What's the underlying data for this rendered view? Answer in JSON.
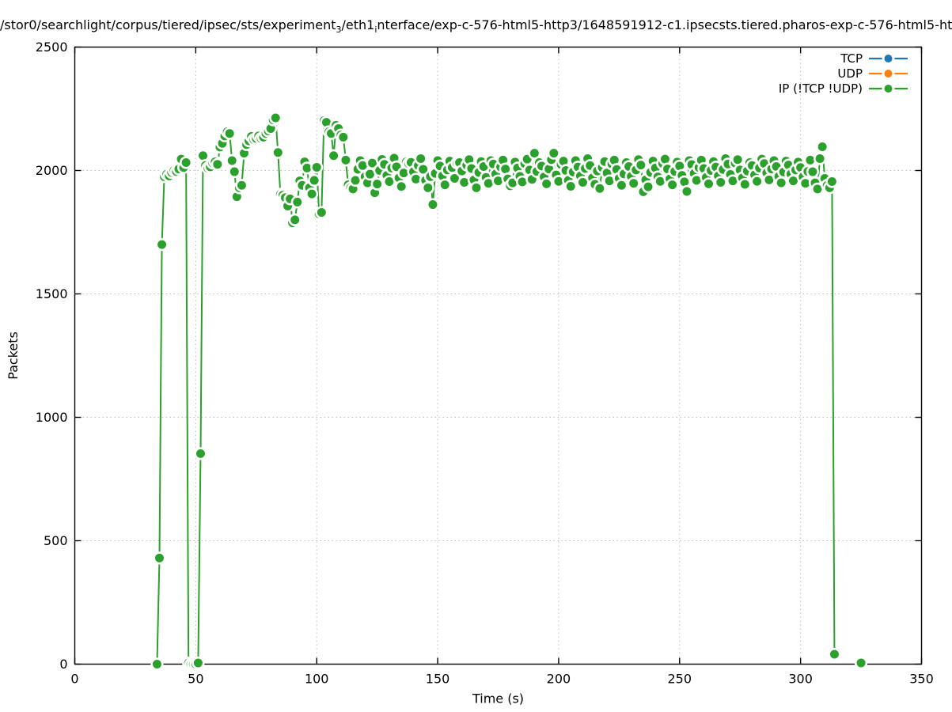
{
  "title": {
    "part1": "/stor0/searchlight/corpus/tiered/ipsec/sts/experiment",
    "sub1": "3",
    "part2": "/eth1",
    "sub2": "i",
    "part3": "nterface/exp-c-576-html5-http3/1648591912-c1.ipsecsts.tiered.pharos-exp-c-576-html5-ht"
  },
  "chart_data": {
    "type": "line",
    "title": "/stor0/searchlight/corpus/tiered/ipsec/sts/experiment_3/eth1_interface/exp-c-576-html5-http3/1648591912-c1.ipsecsts.tiered.pharos-exp-c-576-html5-ht (title clipped at image edges)",
    "xlabel": "Time (s)",
    "ylabel": "Packets",
    "xlim": [
      0,
      350
    ],
    "ylim": [
      0,
      2500
    ],
    "xticks": [
      0,
      50,
      100,
      150,
      200,
      250,
      300,
      350
    ],
    "yticks": [
      0,
      500,
      1000,
      1500,
      2000,
      2500
    ],
    "grid": "dotted",
    "legend_position": "top-right-inside",
    "marker": "filled-circle-with-white-halo",
    "series": [
      {
        "name": "TCP",
        "color": "#1f77b4",
        "points": []
      },
      {
        "name": "UDP",
        "color": "#ff7f0e",
        "points": []
      },
      {
        "name": "IP (!TCP  !UDP)",
        "color": "#2ca02c",
        "points": [
          [
            34,
            0
          ],
          [
            35,
            430
          ],
          [
            36,
            1700
          ],
          [
            37,
            1975
          ],
          [
            38,
            1985
          ],
          [
            39,
            1978
          ],
          [
            40,
            1992
          ],
          [
            41,
            2000
          ],
          [
            42,
            1996
          ],
          [
            43,
            2006
          ],
          [
            44,
            2046
          ],
          [
            45,
            2012
          ],
          [
            46,
            2032
          ],
          [
            47,
            5
          ],
          [
            48,
            0
          ],
          [
            49,
            0
          ],
          [
            50,
            0
          ],
          [
            51,
            5
          ],
          [
            52,
            853
          ],
          [
            53,
            2060
          ],
          [
            54,
            2020
          ],
          [
            55,
            2010
          ],
          [
            56,
            2015
          ],
          [
            57,
            2030
          ],
          [
            58,
            2035
          ],
          [
            59,
            2025
          ],
          [
            60,
            2095
          ],
          [
            61,
            2110
          ],
          [
            62,
            2140
          ],
          [
            63,
            2157
          ],
          [
            64,
            2150
          ],
          [
            65,
            2040
          ],
          [
            66,
            1995
          ],
          [
            67,
            1894
          ],
          [
            68,
            1930
          ],
          [
            69,
            1940
          ],
          [
            70,
            2070
          ],
          [
            71,
            2105
          ],
          [
            72,
            2120
          ],
          [
            73,
            2138
          ],
          [
            74,
            2125
          ],
          [
            75,
            2130
          ],
          [
            76,
            2140
          ],
          [
            77,
            2130
          ],
          [
            78,
            2135
          ],
          [
            79,
            2150
          ],
          [
            80,
            2160
          ],
          [
            81,
            2170
          ],
          [
            82,
            2205
          ],
          [
            83,
            2213
          ],
          [
            84,
            2073
          ],
          [
            85,
            1904
          ],
          [
            86,
            1900
          ],
          [
            87,
            1890
          ],
          [
            88,
            1856
          ],
          [
            89,
            1885
          ],
          [
            90,
            1788
          ],
          [
            91,
            1800
          ],
          [
            92,
            1872
          ],
          [
            93,
            1958
          ],
          [
            94,
            1940
          ],
          [
            95,
            2035
          ],
          [
            96,
            2010
          ],
          [
            97,
            1930
          ],
          [
            98,
            1905
          ],
          [
            99,
            1960
          ],
          [
            100,
            2013
          ],
          [
            101,
            1824
          ],
          [
            102,
            1830
          ],
          [
            103,
            2202
          ],
          [
            104,
            2195
          ],
          [
            105,
            2157
          ],
          [
            106,
            2150
          ],
          [
            107,
            2060
          ],
          [
            108,
            2183
          ],
          [
            109,
            2170
          ],
          [
            110,
            2144
          ],
          [
            111,
            2135
          ],
          [
            112,
            2042
          ],
          [
            113,
            1942
          ],
          [
            114,
            1930
          ],
          [
            115,
            1925
          ],
          [
            116,
            1960
          ],
          [
            117,
            2005
          ],
          [
            118,
            2040
          ],
          [
            119,
            2020
          ],
          [
            120,
            1975
          ],
          [
            121,
            1950
          ],
          [
            122,
            1985
          ],
          [
            123,
            2030
          ],
          [
            124,
            1910
          ],
          [
            125,
            1945
          ],
          [
            126,
            2000
          ],
          [
            127,
            2045
          ],
          [
            128,
            2025
          ],
          [
            129,
            1980
          ],
          [
            130,
            1955
          ],
          [
            131,
            2010
          ],
          [
            132,
            2050
          ],
          [
            133,
            2015
          ],
          [
            134,
            1970
          ],
          [
            135,
            1935
          ],
          [
            136,
            1990
          ],
          [
            137,
            2035
          ],
          [
            138,
            2028
          ],
          [
            139,
            2033
          ],
          [
            140,
            1995
          ],
          [
            141,
            1965
          ],
          [
            142,
            2020
          ],
          [
            143,
            2048
          ],
          [
            144,
            2005
          ],
          [
            145,
            1960
          ],
          [
            146,
            1930
          ],
          [
            147,
            1975
          ],
          [
            148,
            1862
          ],
          [
            149,
            1988
          ],
          [
            150,
            2040
          ],
          [
            151,
            2018
          ],
          [
            152,
            1978
          ],
          [
            153,
            1942
          ],
          [
            154,
            2002
          ],
          [
            155,
            2038
          ],
          [
            156,
            2012
          ],
          [
            157,
            1968
          ],
          [
            158,
            2030
          ],
          [
            159,
            2032
          ],
          [
            160,
            1998
          ],
          [
            161,
            1952
          ],
          [
            162,
            2022
          ],
          [
            163,
            2044
          ],
          [
            164,
            2008
          ],
          [
            165,
            1962
          ],
          [
            166,
            1930
          ],
          [
            167,
            1992
          ],
          [
            168,
            2036
          ],
          [
            169,
            2016
          ],
          [
            170,
            1972
          ],
          [
            171,
            1948
          ],
          [
            172,
            2040
          ],
          [
            173,
            2026
          ],
          [
            174,
            1986
          ],
          [
            175,
            1958
          ],
          [
            176,
            2014
          ],
          [
            177,
            2042
          ],
          [
            178,
            2006
          ],
          [
            179,
            1966
          ],
          [
            180,
            1938
          ],
          [
            181,
            1950
          ],
          [
            182,
            2034
          ],
          [
            183,
            2010
          ],
          [
            184,
            1976
          ],
          [
            185,
            1954
          ],
          [
            186,
            2028
          ],
          [
            187,
            2046
          ],
          [
            188,
            2002
          ],
          [
            189,
            1964
          ],
          [
            190,
            2070
          ],
          [
            191,
            1996
          ],
          [
            192,
            2032
          ],
          [
            193,
            2018
          ],
          [
            194,
            1974
          ],
          [
            195,
            1946
          ],
          [
            196,
            2006
          ],
          [
            197,
            2044
          ],
          [
            198,
            2070
          ],
          [
            199,
            1982
          ],
          [
            200,
            1956
          ],
          [
            201,
            2024
          ],
          [
            202,
            2038
          ],
          [
            203,
            2000
          ],
          [
            204,
            1960
          ],
          [
            205,
            1936
          ],
          [
            206,
            1994
          ],
          [
            207,
            2040
          ],
          [
            208,
            2014
          ],
          [
            209,
            1978
          ],
          [
            210,
            1952
          ],
          [
            211,
            2008
          ],
          [
            212,
            2048
          ],
          [
            213,
            2020
          ],
          [
            214,
            1970
          ],
          [
            215,
            1944
          ],
          [
            216,
            1998
          ],
          [
            217,
            1927
          ],
          [
            218,
            2012
          ],
          [
            219,
            2036
          ],
          [
            220,
            1990
          ],
          [
            221,
            1958
          ],
          [
            222,
            2026
          ],
          [
            223,
            2042
          ],
          [
            224,
            2004
          ],
          [
            225,
            1968
          ],
          [
            226,
            1940
          ],
          [
            227,
            1986
          ],
          [
            228,
            2032
          ],
          [
            229,
            2016
          ],
          [
            230,
            1976
          ],
          [
            231,
            1948
          ],
          [
            232,
            2002
          ],
          [
            233,
            2044
          ],
          [
            234,
            2022
          ],
          [
            235,
            1914
          ],
          [
            236,
            1962
          ],
          [
            237,
            1934
          ],
          [
            238,
            1992
          ],
          [
            239,
            2038
          ],
          [
            240,
            2010
          ],
          [
            241,
            1974
          ],
          [
            242,
            1956
          ],
          [
            243,
            2028
          ],
          [
            244,
            2046
          ],
          [
            245,
            2006
          ],
          [
            246,
            1966
          ],
          [
            247,
            1942
          ],
          [
            248,
            1996
          ],
          [
            249,
            2034
          ],
          [
            250,
            2018
          ],
          [
            251,
            1980
          ],
          [
            252,
            1954
          ],
          [
            253,
            1915
          ],
          [
            254,
            2040
          ],
          [
            255,
            2024
          ],
          [
            256,
            1988
          ],
          [
            257,
            1960
          ],
          [
            258,
            2012
          ],
          [
            259,
            2042
          ],
          [
            260,
            2008
          ],
          [
            261,
            1972
          ],
          [
            262,
            1946
          ],
          [
            263,
            2000
          ],
          [
            264,
            2036
          ],
          [
            265,
            2014
          ],
          [
            266,
            1978
          ],
          [
            267,
            1952
          ],
          [
            268,
            2004
          ],
          [
            269,
            2048
          ],
          [
            270,
            2026
          ],
          [
            271,
            1984
          ],
          [
            272,
            1958
          ],
          [
            273,
            2030
          ],
          [
            274,
            2044
          ],
          [
            275,
            2002
          ],
          [
            276,
            1970
          ],
          [
            277,
            1944
          ],
          [
            278,
            1998
          ],
          [
            279,
            2032
          ],
          [
            280,
            2020
          ],
          [
            281,
            1982
          ],
          [
            282,
            1956
          ],
          [
            283,
            2010
          ],
          [
            284,
            2046
          ],
          [
            285,
            2028
          ],
          [
            286,
            1990
          ],
          [
            287,
            1962
          ],
          [
            288,
            2006
          ],
          [
            289,
            2040
          ],
          [
            290,
            2016
          ],
          [
            291,
            1976
          ],
          [
            292,
            1950
          ],
          [
            293,
            1994
          ],
          [
            294,
            2038
          ],
          [
            295,
            2022
          ],
          [
            296,
            1986
          ],
          [
            297,
            1958
          ],
          [
            298,
            2002
          ],
          [
            299,
            2034
          ],
          [
            300,
            2012
          ],
          [
            301,
            1974
          ],
          [
            302,
            1948
          ],
          [
            303,
            1996
          ],
          [
            304,
            2042
          ],
          [
            305,
            1995
          ],
          [
            306,
            1950
          ],
          [
            307,
            1925
          ],
          [
            308,
            2048
          ],
          [
            309,
            2096
          ],
          [
            310,
            1968
          ],
          [
            311,
            1940
          ],
          [
            312,
            1930
          ],
          [
            313,
            1955
          ],
          [
            314,
            40
          ]
        ],
        "isolated_points": [
          [
            325,
            5
          ]
        ]
      }
    ]
  },
  "colors": {
    "grid": "#bdbdbd",
    "border": "#000000",
    "background": "#ffffff"
  }
}
